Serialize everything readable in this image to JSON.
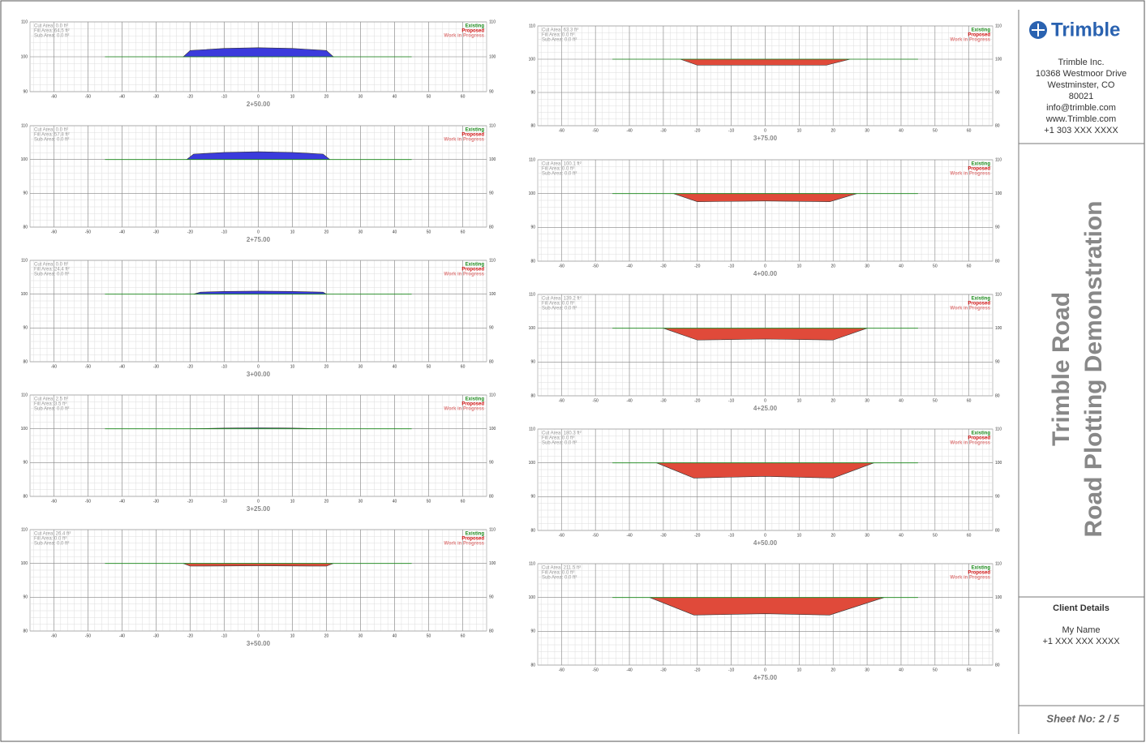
{
  "company": {
    "logo": "Trimble",
    "lines": [
      "Trimble Inc.",
      "10368 Westmoor Drive",
      "Westminster, CO",
      "80021",
      "info@trimble.com",
      "www.Trimble.com",
      "+1 303 XXX XXXX"
    ]
  },
  "title": {
    "line1": "Trimble Road",
    "line2": "Road Plotting Demonstration"
  },
  "client": {
    "heading": "Client Details",
    "name": "My Name",
    "phone": "+1 XXX XXX XXXX"
  },
  "sheet": "Sheet No: 2 / 5",
  "legend": [
    {
      "label": "Existing",
      "color": "#1a8a1a"
    },
    {
      "label": "Proposed",
      "color": "#d01010"
    },
    {
      "label": "Work in Progress",
      "color": "#e08080"
    }
  ],
  "axes": {
    "xlim": [
      -67,
      67
    ],
    "xticks": [
      -60,
      -50,
      -40,
      -30,
      -20,
      -10,
      0,
      10,
      20,
      30,
      40,
      50,
      60
    ],
    "minor_step": 2
  },
  "sections": [
    {
      "station": "2+50.00",
      "areas": [
        "Cut Area: 0.0 ft²",
        "Fill Area: 64.5 ft²",
        "Sub Area: 0.0 ft²"
      ],
      "ylim": [
        90,
        110
      ],
      "yticks": [
        90,
        100,
        110
      ],
      "existing": {
        "x": [
          -45,
          45
        ],
        "y": [
          100,
          100
        ]
      },
      "proposed": {
        "x": [
          -22,
          -20,
          -10,
          0,
          10,
          20,
          22
        ],
        "y": [
          100,
          101.8,
          102.4,
          102.6,
          102.4,
          101.8,
          100
        ]
      },
      "color": "#3b3bdc"
    },
    {
      "station": "2+75.00",
      "areas": [
        "Cut Area: 0.0 ft²",
        "Fill Area: 57.8 ft²",
        "Sub Area: 0.0 ft²"
      ],
      "ylim": [
        80,
        110
      ],
      "yticks": [
        80,
        90,
        100,
        110
      ],
      "existing": {
        "x": [
          -45,
          45
        ],
        "y": [
          100,
          100
        ]
      },
      "proposed": {
        "x": [
          -21,
          -19,
          -10,
          0,
          10,
          19,
          21
        ],
        "y": [
          100,
          101.6,
          102.1,
          102.3,
          102.1,
          101.6,
          100
        ]
      },
      "color": "#3b3bdc"
    },
    {
      "station": "3+00.00",
      "areas": [
        "Cut Area: 0.0 ft²",
        "Fill Area: 24.4 ft²",
        "Sub Area: 0.0 ft²"
      ],
      "ylim": [
        80,
        110
      ],
      "yticks": [
        80,
        90,
        100,
        110
      ],
      "existing": {
        "x": [
          -45,
          45
        ],
        "y": [
          100,
          100
        ]
      },
      "proposed": {
        "x": [
          -19,
          -17,
          -10,
          0,
          10,
          19,
          20
        ],
        "y": [
          100,
          100.6,
          100.8,
          100.9,
          100.8,
          100.6,
          100
        ]
      },
      "color": "#3b3bdc"
    },
    {
      "station": "3+25.00",
      "areas": [
        "Cut Area: 2.5 ft²",
        "Fill Area: 3.5 ft²",
        "Sub Area: 0.0 ft²"
      ],
      "ylim": [
        80,
        110
      ],
      "yticks": [
        80,
        90,
        100,
        110
      ],
      "existing": {
        "x": [
          -45,
          45
        ],
        "y": [
          100,
          100
        ]
      },
      "proposed": {
        "x": [
          -20,
          -10,
          0,
          10,
          20
        ],
        "y": [
          100,
          100.2,
          100.3,
          100.2,
          100
        ]
      },
      "color": "#8fa8d8"
    },
    {
      "station": "3+50.00",
      "areas": [
        "Cut Area: 26.4 ft²",
        "Fill Area: 0.0 ft²",
        "Sub Area: 0.0 ft²"
      ],
      "ylim": [
        80,
        110
      ],
      "yticks": [
        80,
        90,
        100,
        110
      ],
      "existing": {
        "x": [
          -45,
          45
        ],
        "y": [
          100,
          100
        ]
      },
      "proposed": {
        "x": [
          -22,
          -20,
          0,
          20,
          22
        ],
        "y": [
          100,
          99.2,
          99.3,
          99.2,
          100
        ]
      },
      "color": "#e04a3a"
    },
    {
      "station": "3+75.00",
      "areas": [
        "Cut Area: 63.3 ft²",
        "Fill Area: 0.0 ft²",
        "Sub Area: 0.0 ft²"
      ],
      "ylim": [
        80,
        110
      ],
      "yticks": [
        80,
        90,
        100,
        110
      ],
      "existing": {
        "x": [
          -45,
          45
        ],
        "y": [
          100,
          100
        ]
      },
      "proposed": {
        "x": [
          -25,
          -20,
          0,
          18,
          25
        ],
        "y": [
          100,
          98.2,
          98.2,
          98.2,
          100
        ]
      },
      "color": "#e04a3a"
    },
    {
      "station": "4+00.00",
      "areas": [
        "Cut Area: 100.1 ft²",
        "Fill Area: 0.0 ft²",
        "Sub Area: 0.0 ft²"
      ],
      "ylim": [
        80,
        110
      ],
      "yticks": [
        80,
        90,
        100,
        110
      ],
      "existing": {
        "x": [
          -45,
          45
        ],
        "y": [
          100,
          100
        ]
      },
      "proposed": {
        "x": [
          -27,
          -20,
          0,
          19,
          27
        ],
        "y": [
          100,
          97.6,
          97.8,
          97.6,
          100
        ]
      },
      "color": "#e04a3a"
    },
    {
      "station": "4+25.00",
      "areas": [
        "Cut Area: 139.2 ft²",
        "Fill Area: 0.0 ft²",
        "Sub Area: 0.0 ft²"
      ],
      "ylim": [
        80,
        110
      ],
      "yticks": [
        80,
        90,
        100,
        110
      ],
      "existing": {
        "x": [
          -45,
          45
        ],
        "y": [
          100,
          100
        ]
      },
      "proposed": {
        "x": [
          -30,
          -20,
          0,
          20,
          30
        ],
        "y": [
          100,
          96.5,
          96.8,
          96.5,
          100
        ]
      },
      "color": "#e04a3a"
    },
    {
      "station": "4+50.00",
      "areas": [
        "Cut Area: 180.3 ft²",
        "Fill Area: 0.0 ft²",
        "Sub Area: 0.0 ft²"
      ],
      "ylim": [
        80,
        110
      ],
      "yticks": [
        80,
        90,
        100,
        110
      ],
      "existing": {
        "x": [
          -45,
          45
        ],
        "y": [
          100,
          100
        ]
      },
      "proposed": {
        "x": [
          -32,
          -21,
          0,
          20,
          32
        ],
        "y": [
          100,
          95.5,
          96,
          95.5,
          100
        ]
      },
      "color": "#e04a3a"
    },
    {
      "station": "4+75.00",
      "areas": [
        "Cut Area: 211.5 ft²",
        "Fill Area: 0.0 ft²",
        "Sub Area: 0.0 ft²"
      ],
      "ylim": [
        80,
        110
      ],
      "yticks": [
        80,
        90,
        100,
        110
      ],
      "existing": {
        "x": [
          -45,
          45
        ],
        "y": [
          100,
          100
        ]
      },
      "proposed": {
        "x": [
          -34,
          -21,
          0,
          19,
          35
        ],
        "y": [
          100,
          94.8,
          95.2,
          94.8,
          100
        ]
      },
      "color": "#e04a3a"
    }
  ]
}
